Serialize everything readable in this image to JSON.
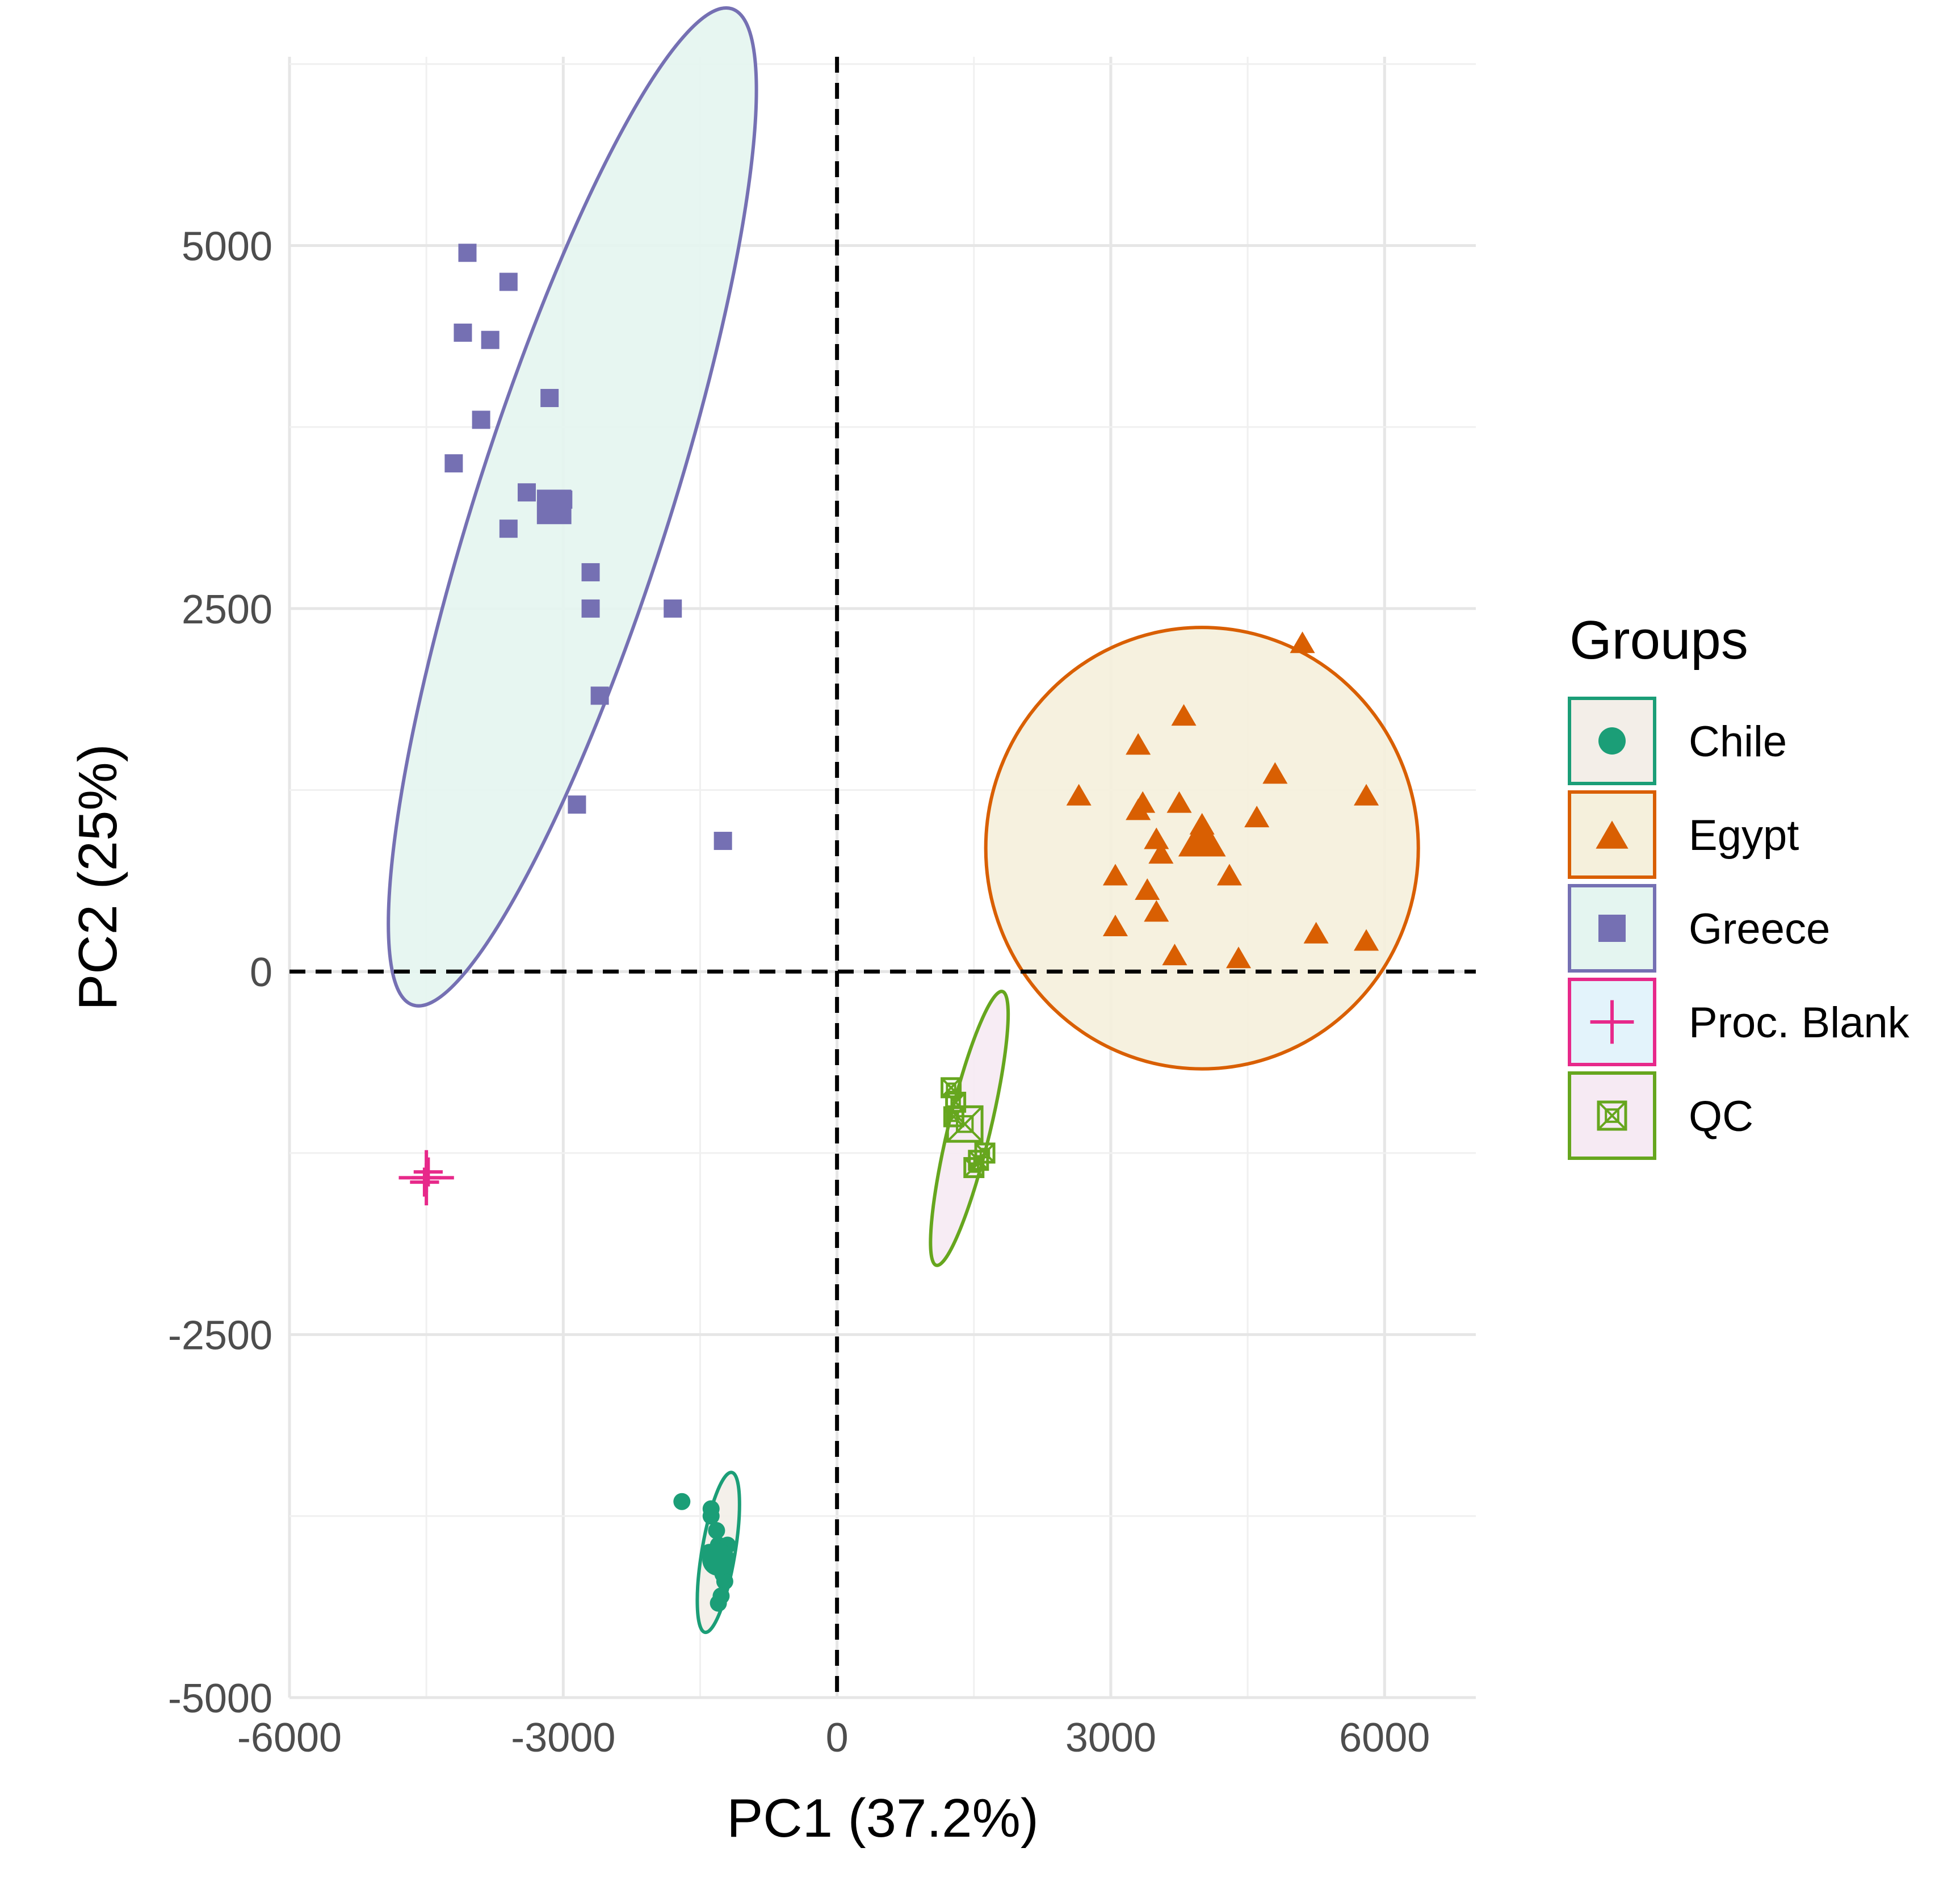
{
  "chart_data": {
    "type": "scatter",
    "title": "",
    "xlabel": "PC1 (37.2%)",
    "ylabel": "PC2 (25%)",
    "xlim": [
      -6000,
      7000
    ],
    "ylim": [
      -5000,
      6300
    ],
    "x_ticks": [
      -6000,
      -3000,
      0,
      3000,
      6000
    ],
    "x_tick_labels": [
      "-6000",
      "-3000",
      "0",
      "3000",
      "6000"
    ],
    "y_ticks": [
      -5000,
      -2500,
      0,
      2500,
      5000
    ],
    "y_tick_labels": [
      "-5000",
      "-2500",
      "0",
      "2500",
      "5000"
    ],
    "grid": true,
    "reference_lines": {
      "x": 0,
      "y": 0,
      "style": "dashed"
    },
    "legend": {
      "title": "Groups",
      "position": "right"
    },
    "series": [
      {
        "name": "Chile",
        "marker": "circle",
        "color": "#1b9e77",
        "fill": "#f3eee8",
        "x": [
          -1350,
          -1300,
          -1250,
          -1400,
          -1320,
          -1280,
          -1380,
          -1230,
          -1300,
          -1700,
          -1200,
          -1270,
          -1380
        ],
        "y": [
          -4050,
          -3950,
          -4150,
          -4000,
          -3850,
          -4100,
          -3750,
          -4200,
          -4350,
          -3650,
          -3950,
          -4300,
          -3700
        ],
        "centroid": [
          -1300,
          -4050
        ],
        "ellipse": {
          "cx": -1300,
          "cy": -4000,
          "rx": 180,
          "ry": 560,
          "angle_deg": -6
        }
      },
      {
        "name": "Egypt",
        "marker": "triangle",
        "color": "#d95f02",
        "fill": "#f5f0dc",
        "x": [
          5100,
          3800,
          3300,
          2650,
          3350,
          3750,
          4800,
          5800,
          4600,
          3500,
          3550,
          3050,
          4300,
          3400,
          3500,
          3050,
          5250,
          5800,
          3700,
          4400,
          4000,
          3300
        ],
        "y": [
          2250,
          1750,
          1550,
          1200,
          1150,
          1150,
          1350,
          1200,
          1050,
          900,
          800,
          650,
          650,
          550,
          400,
          300,
          250,
          200,
          100,
          80,
          1000,
          1100
        ],
        "centroid": [
          4000,
          900
        ],
        "ellipse": {
          "cx": 4000,
          "cy": 850,
          "rx": 2370,
          "ry": 1520,
          "angle_deg": 0
        }
      },
      {
        "name": "Greece",
        "marker": "square",
        "color": "#7570b3",
        "fill": "#e4f5f0",
        "x": [
          -4050,
          -3600,
          -4100,
          -3800,
          -3150,
          -3900,
          -4200,
          -3400,
          -3000,
          -3100,
          -3600,
          -2700,
          -2700,
          -1800,
          -2600,
          -2850,
          -1250
        ],
        "y": [
          4950,
          4750,
          4400,
          4350,
          3950,
          3800,
          3500,
          3300,
          3250,
          3200,
          3050,
          2750,
          2500,
          2500,
          1900,
          1150,
          900
        ],
        "centroid": [
          -3100,
          3200
        ],
        "ellipse": {
          "cx": -2900,
          "cy": 3200,
          "rx": 3850,
          "ry": 920,
          "angle_deg": 63
        }
      },
      {
        "name": "Proc. Blank",
        "marker": "plus",
        "color": "#e7298a",
        "fill": "#e3f3fb",
        "x": [
          -4520,
          -4480,
          -4500
        ],
        "y": [
          -1450,
          -1380,
          -1420
        ],
        "centroid": [
          -4500,
          -1420
        ],
        "ellipse": null
      },
      {
        "name": "QC",
        "marker": "square-x",
        "color": "#66a61e",
        "fill": "#f6eaf3",
        "x": [
          1250,
          1300,
          1280,
          1620,
          1550,
          1500
        ],
        "y": [
          -800,
          -900,
          -1000,
          -1250,
          -1300,
          -1350
        ],
        "centroid": [
          1400,
          -1050
        ],
        "ellipse": {
          "cx": 1450,
          "cy": -1080,
          "rx": 1010,
          "ry": 210,
          "angle_deg": 69
        }
      }
    ]
  }
}
